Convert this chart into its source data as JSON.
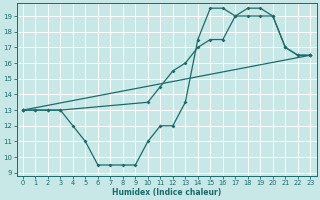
{
  "xlabel": "Humidex (Indice chaleur)",
  "xlim": [
    -0.5,
    23.5
  ],
  "ylim": [
    8.8,
    19.8
  ],
  "yticks": [
    9,
    10,
    11,
    12,
    13,
    14,
    15,
    16,
    17,
    18,
    19
  ],
  "xticks": [
    0,
    1,
    2,
    3,
    4,
    5,
    6,
    7,
    8,
    9,
    10,
    11,
    12,
    13,
    14,
    15,
    16,
    17,
    18,
    19,
    20,
    21,
    22,
    23
  ],
  "bg_color": "#c8e8e8",
  "line_color": "#1a6b6b",
  "grid_color": "#ffffff",
  "lines": [
    {
      "x": [
        0,
        1,
        2,
        3,
        4,
        5,
        6,
        7,
        8,
        9,
        10,
        11,
        12,
        13,
        14,
        15,
        16,
        17,
        18,
        19,
        20,
        21,
        22,
        23
      ],
      "y": [
        13,
        13,
        13,
        13,
        12,
        11,
        9.5,
        9.5,
        9.5,
        9.5,
        11.0,
        12,
        12,
        13.5,
        17.5,
        19.5,
        19.5,
        19.0,
        19.5,
        19.5,
        19.0,
        17.0,
        16.5,
        16.5
      ]
    },
    {
      "x": [
        0,
        1,
        2,
        3,
        10,
        11,
        12,
        13,
        14,
        15,
        16,
        17,
        18,
        19,
        20,
        21,
        22,
        23
      ],
      "y": [
        13,
        13,
        13,
        13,
        13.5,
        14.5,
        15.5,
        16.0,
        17.0,
        17.5,
        17.5,
        19.0,
        19.0,
        19.0,
        19.0,
        17.0,
        16.5,
        16.5
      ]
    },
    {
      "x": [
        0,
        23
      ],
      "y": [
        13,
        16.5
      ]
    }
  ]
}
